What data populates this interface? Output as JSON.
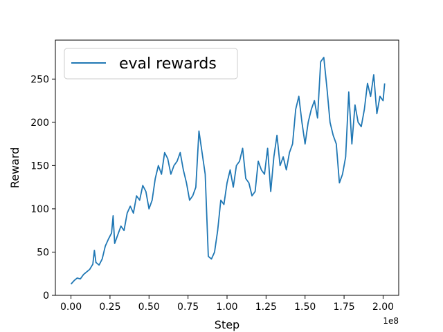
{
  "chart_data": {
    "type": "line",
    "xlabel": "Step",
    "ylabel": "Reward",
    "x_offset_label": "1e8",
    "xlim": [
      -10000000.0,
      210000000.0
    ],
    "ylim": [
      0,
      295
    ],
    "xticks": [
      0,
      25000000.0,
      50000000.0,
      75000000.0,
      100000000.0,
      125000000.0,
      150000000.0,
      175000000.0,
      200000000.0
    ],
    "xtick_labels": [
      "0.00",
      "0.25",
      "0.50",
      "0.75",
      "1.00",
      "1.25",
      "1.50",
      "1.75",
      "2.00"
    ],
    "yticks": [
      0,
      50,
      100,
      150,
      200,
      250
    ],
    "ytick_labels": [
      "0",
      "50",
      "100",
      "150",
      "200",
      "250"
    ],
    "grid": false,
    "legend_position": "top-left",
    "color": "#1f77b4",
    "series": [
      {
        "name": "eval rewards",
        "x": [
          0,
          2000000.0,
          4000000.0,
          6000000.0,
          8000000.0,
          10000000.0,
          12000000.0,
          14000000.0,
          15000000.0,
          16000000.0,
          18000000.0,
          20000000.0,
          22000000.0,
          24000000.0,
          26000000.0,
          27000000.0,
          28000000.0,
          30000000.0,
          32000000.0,
          34000000.0,
          36000000.0,
          38000000.0,
          40000000.0,
          42000000.0,
          44000000.0,
          46000000.0,
          48000000.0,
          50000000.0,
          52000000.0,
          54000000.0,
          56000000.0,
          58000000.0,
          60000000.0,
          62000000.0,
          64000000.0,
          66000000.0,
          68000000.0,
          70000000.0,
          72000000.0,
          74000000.0,
          76000000.0,
          78000000.0,
          80000000.0,
          82000000.0,
          84000000.0,
          86000000.0,
          88000000.0,
          90000000.0,
          92000000.0,
          94000000.0,
          96000000.0,
          98000000.0,
          100000000.0,
          102000000.0,
          104000000.0,
          106000000.0,
          108000000.0,
          110000000.0,
          112000000.0,
          114000000.0,
          116000000.0,
          118000000.0,
          120000000.0,
          122000000.0,
          124000000.0,
          126000000.0,
          128000000.0,
          130000000.0,
          132000000.0,
          134000000.0,
          136000000.0,
          138000000.0,
          140000000.0,
          142000000.0,
          144000000.0,
          146000000.0,
          148000000.0,
          150000000.0,
          152000000.0,
          154000000.0,
          156000000.0,
          158000000.0,
          160000000.0,
          162000000.0,
          164000000.0,
          166000000.0,
          168000000.0,
          170000000.0,
          172000000.0,
          174000000.0,
          176000000.0,
          178000000.0,
          180000000.0,
          182000000.0,
          184000000.0,
          186000000.0,
          188000000.0,
          190000000.0,
          192000000.0,
          194000000.0,
          196000000.0,
          198000000.0,
          200000000.0,
          201000000.0
        ],
        "values": [
          13,
          17,
          20,
          19,
          24,
          27,
          30,
          36,
          52,
          38,
          35,
          42,
          57,
          65,
          72,
          92,
          60,
          70,
          80,
          75,
          95,
          103,
          95,
          115,
          110,
          127,
          120,
          100,
          110,
          135,
          150,
          140,
          165,
          158,
          140,
          150,
          155,
          165,
          145,
          130,
          110,
          115,
          125,
          190,
          165,
          140,
          45,
          42,
          50,
          75,
          110,
          105,
          130,
          145,
          125,
          150,
          155,
          170,
          135,
          130,
          115,
          120,
          155,
          145,
          140,
          170,
          120,
          160,
          185,
          150,
          160,
          145,
          165,
          175,
          215,
          230,
          200,
          175,
          200,
          215,
          225,
          205,
          270,
          275,
          240,
          200,
          185,
          175,
          130,
          140,
          160,
          235,
          175,
          220,
          200,
          195,
          215,
          245,
          230,
          255,
          210,
          230,
          225,
          245
        ]
      }
    ]
  }
}
